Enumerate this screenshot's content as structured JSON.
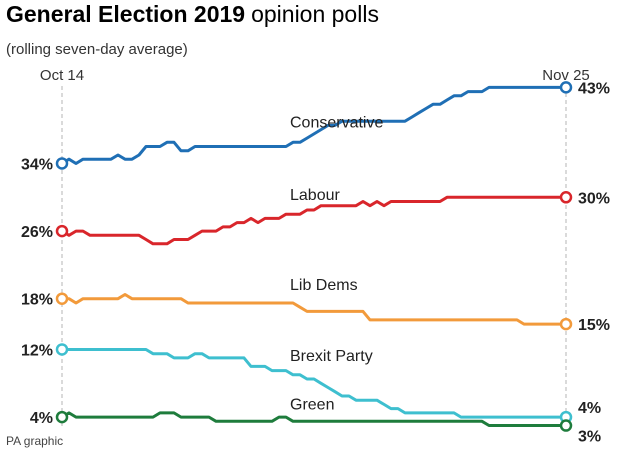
{
  "chart_data": {
    "type": "line",
    "title_bold": "General Election 2019",
    "title_rest": "opinion polls",
    "subtitle": "(rolling seven-day average)",
    "x_start_label": "Oct 14",
    "x_end_label": "Nov 25",
    "ylim": [
      2,
      46
    ],
    "credit": "PA graphic",
    "series": [
      {
        "name": "Conservative",
        "color": "#1f6fb5",
        "start_label": "34%",
        "end_label": "43%",
        "values": [
          34,
          34.5,
          34,
          34.5,
          34.5,
          34.5,
          34.5,
          34.5,
          35,
          34.5,
          34.5,
          35,
          36,
          36,
          36,
          36.5,
          36.5,
          35.5,
          35.5,
          36,
          36,
          36,
          36,
          36,
          36,
          36,
          36,
          36,
          36,
          36,
          36,
          36,
          36,
          36.5,
          36.5,
          37,
          37.5,
          38,
          38.5,
          38.5,
          39,
          39,
          39,
          39,
          39,
          39,
          39,
          39,
          39,
          39,
          39.5,
          40,
          40.5,
          41,
          41,
          41.5,
          42,
          42,
          42.5,
          42.5,
          42.5,
          43,
          43,
          43,
          43,
          43,
          43,
          43,
          43,
          43,
          43,
          43,
          43
        ]
      },
      {
        "name": "Labour",
        "color": "#d9262b",
        "start_label": "26%",
        "end_label": "30%",
        "values": [
          26,
          25.5,
          26,
          26,
          25.5,
          25.5,
          25.5,
          25.5,
          25.5,
          25.5,
          25.5,
          25.5,
          25,
          24.5,
          24.5,
          24.5,
          25,
          25,
          25,
          25.5,
          26,
          26,
          26,
          26.5,
          26.5,
          27,
          27,
          27.5,
          27,
          27.5,
          27.5,
          27.5,
          28,
          28,
          28,
          28.5,
          28.5,
          29,
          29,
          29,
          29,
          29,
          29,
          29.5,
          29,
          29.5,
          29,
          29.5,
          29.5,
          29.5,
          29.5,
          29.5,
          29.5,
          29.5,
          29.5,
          30,
          30,
          30,
          30,
          30,
          30,
          30,
          30,
          30,
          30,
          30,
          30,
          30,
          30,
          30,
          30,
          30,
          30
        ]
      },
      {
        "name": "Lib Dems",
        "color": "#f29a3b",
        "start_label": "18%",
        "end_label": "15%",
        "values": [
          18,
          18,
          17.5,
          18,
          18,
          18,
          18,
          18,
          18,
          18.5,
          18,
          18,
          18,
          18,
          18,
          18,
          18,
          18,
          17.5,
          17.5,
          17.5,
          17.5,
          17.5,
          17.5,
          17.5,
          17.5,
          17.5,
          17.5,
          17.5,
          17.5,
          17.5,
          17.5,
          17.5,
          17.5,
          17,
          16.5,
          16.5,
          16.5,
          16.5,
          16.5,
          16.5,
          16.5,
          16.5,
          16.5,
          15.5,
          15.5,
          15.5,
          15.5,
          15.5,
          15.5,
          15.5,
          15.5,
          15.5,
          15.5,
          15.5,
          15.5,
          15.5,
          15.5,
          15.5,
          15.5,
          15.5,
          15.5,
          15.5,
          15.5,
          15.5,
          15.5,
          15,
          15,
          15,
          15,
          15,
          15,
          15
        ]
      },
      {
        "name": "Brexit Party",
        "color": "#3ebfcf",
        "start_label": "12%",
        "end_label": "4%",
        "values": [
          12,
          12,
          12,
          12,
          12,
          12,
          12,
          12,
          12,
          12,
          12,
          12,
          12,
          11.5,
          11.5,
          11.5,
          11,
          11,
          11,
          11.5,
          11.5,
          11,
          11,
          11,
          11,
          11,
          11,
          10,
          10,
          10,
          9.5,
          9.5,
          9.5,
          9,
          9,
          8.5,
          8.5,
          8,
          7.5,
          7,
          6.5,
          6.5,
          6,
          6,
          6,
          6,
          5.5,
          5,
          5,
          4.5,
          4.5,
          4.5,
          4.5,
          4.5,
          4.5,
          4.5,
          4.5,
          4,
          4,
          4,
          4,
          4,
          4,
          4,
          4,
          4,
          4,
          4,
          4,
          4,
          4,
          4,
          4
        ]
      },
      {
        "name": "Green",
        "color": "#1e7c3c",
        "start_label": "4%",
        "end_label": "3%",
        "values": [
          4,
          4.5,
          4,
          4,
          4,
          4,
          4,
          4,
          4,
          4,
          4,
          4,
          4,
          4,
          4.5,
          4.5,
          4.5,
          4,
          4,
          4,
          4,
          4,
          3.5,
          3.5,
          3.5,
          3.5,
          3.5,
          3.5,
          3.5,
          3.5,
          3.5,
          4,
          4,
          3.5,
          3.5,
          3.5,
          3.5,
          3.5,
          3.5,
          3.5,
          3.5,
          3.5,
          3.5,
          3.5,
          3.5,
          3.5,
          3.5,
          3.5,
          3.5,
          3.5,
          3.5,
          3.5,
          3.5,
          3.5,
          3.5,
          3.5,
          3.5,
          3.5,
          3.5,
          3.5,
          3.5,
          3,
          3,
          3,
          3,
          3,
          3,
          3,
          3,
          3,
          3,
          3,
          3
        ]
      }
    ]
  }
}
